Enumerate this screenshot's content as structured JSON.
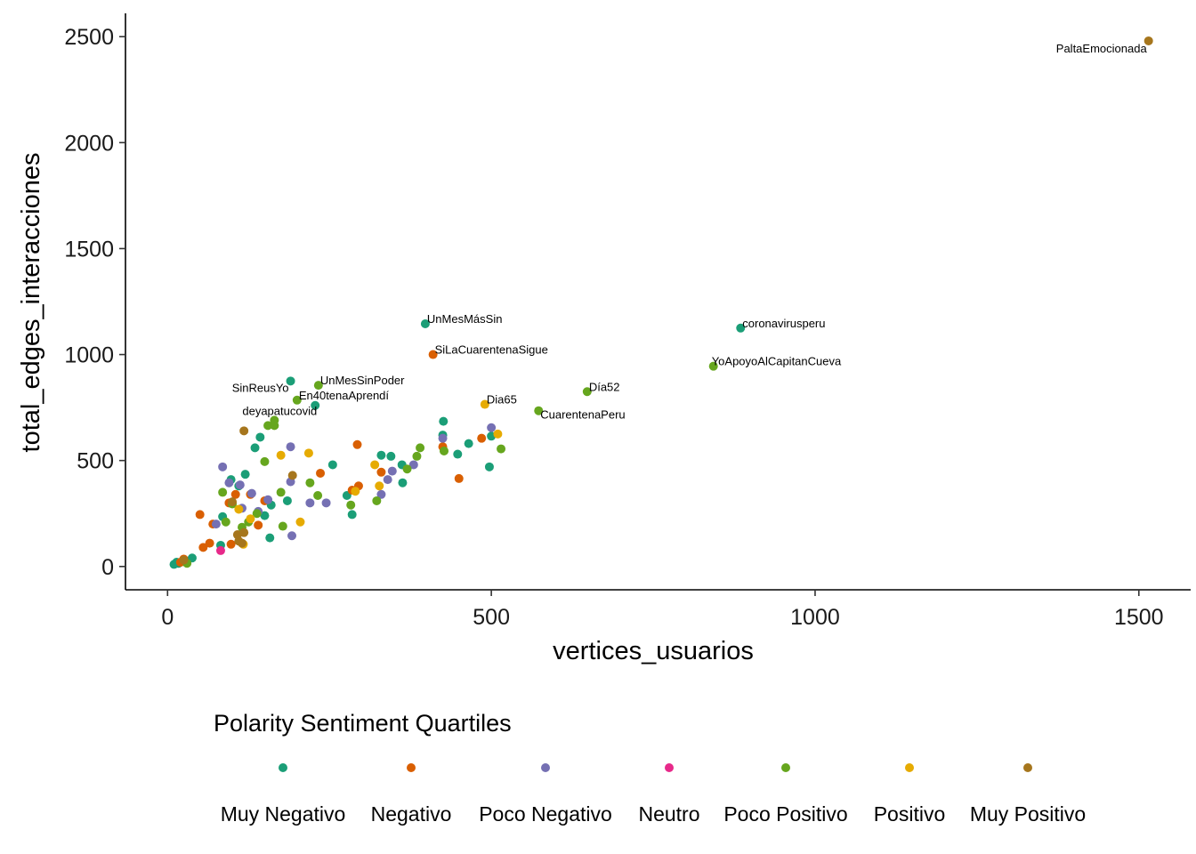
{
  "chart_data": {
    "type": "scatter",
    "title": "",
    "xlabel": "vertices_usuarios",
    "ylabel": "total_edges_interacciones",
    "xlim": [
      -65,
      1580
    ],
    "ylim": [
      -110,
      2610
    ],
    "x_ticks": [
      0,
      500,
      1000,
      1500
    ],
    "y_ticks": [
      0,
      500,
      1000,
      1500,
      2000,
      2500
    ],
    "grid": false,
    "legend": {
      "title": "Polarity Sentiment Quartiles",
      "position": "bottom",
      "entries": [
        {
          "name": "Muy Negativo",
          "color": "#1b9e77"
        },
        {
          "name": "Negativo",
          "color": "#d95f02"
        },
        {
          "name": "Poco Negativo",
          "color": "#7570b3"
        },
        {
          "name": "Neutro",
          "color": "#e7298a"
        },
        {
          "name": "Poco Positivo",
          "color": "#66a61e"
        },
        {
          "name": "Positivo",
          "color": "#e6ab02"
        },
        {
          "name": "Muy Positivo",
          "color": "#a6761d"
        }
      ]
    },
    "series": [
      {
        "name": "Muy Negativo",
        "points": [
          [
            885,
            1125
          ],
          [
            398,
            1145
          ],
          [
            190,
            875
          ],
          [
            228,
            760
          ],
          [
            143,
            610
          ],
          [
            135,
            560
          ],
          [
            426,
            685
          ],
          [
            465,
            580
          ],
          [
            448,
            530
          ],
          [
            497,
            470
          ],
          [
            500,
            615
          ],
          [
            425,
            620
          ],
          [
            330,
            525
          ],
          [
            345,
            520
          ],
          [
            362,
            480
          ],
          [
            363,
            395
          ],
          [
            277,
            335
          ],
          [
            285,
            245
          ],
          [
            255,
            480
          ],
          [
            98,
            410
          ],
          [
            120,
            435
          ],
          [
            110,
            380
          ],
          [
            160,
            290
          ],
          [
            158,
            135
          ],
          [
            185,
            310
          ],
          [
            150,
            240
          ],
          [
            85,
            235
          ],
          [
            82,
            100
          ],
          [
            30,
            25
          ],
          [
            38,
            40
          ],
          [
            14,
            20
          ],
          [
            10,
            10
          ],
          [
            17,
            15
          ]
        ]
      },
      {
        "name": "Negativo",
        "points": [
          [
            410,
            1000
          ],
          [
            293,
            575
          ],
          [
            485,
            605
          ],
          [
            450,
            415
          ],
          [
            425,
            565
          ],
          [
            236,
            440
          ],
          [
            295,
            380
          ],
          [
            285,
            360
          ],
          [
            330,
            445
          ],
          [
            140,
            195
          ],
          [
            150,
            310
          ],
          [
            128,
            340
          ],
          [
            95,
            300
          ],
          [
            105,
            340
          ],
          [
            50,
            245
          ],
          [
            70,
            200
          ],
          [
            55,
            90
          ],
          [
            65,
            110
          ],
          [
            98,
            105
          ],
          [
            20,
            20
          ],
          [
            25,
            35
          ]
        ]
      },
      {
        "name": "Poco Negativo",
        "points": [
          [
            190,
            565
          ],
          [
            500,
            655
          ],
          [
            425,
            605
          ],
          [
            380,
            480
          ],
          [
            347,
            450
          ],
          [
            340,
            410
          ],
          [
            330,
            340
          ],
          [
            245,
            300
          ],
          [
            220,
            300
          ],
          [
            190,
            400
          ],
          [
            192,
            145
          ],
          [
            112,
            385
          ],
          [
            130,
            345
          ],
          [
            115,
            275
          ],
          [
            140,
            260
          ],
          [
            155,
            315
          ],
          [
            85,
            470
          ],
          [
            95,
            395
          ],
          [
            75,
            200
          ]
        ]
      },
      {
        "name": "Neutro",
        "points": [
          [
            82,
            75
          ]
        ]
      },
      {
        "name": "Poco Positivo",
        "points": [
          [
            843,
            945
          ],
          [
            648,
            825
          ],
          [
            573,
            735
          ],
          [
            233,
            855
          ],
          [
            200,
            785
          ],
          [
            165,
            665
          ],
          [
            165,
            690
          ],
          [
            155,
            665
          ],
          [
            150,
            495
          ],
          [
            390,
            560
          ],
          [
            385,
            520
          ],
          [
            427,
            545
          ],
          [
            515,
            555
          ],
          [
            370,
            460
          ],
          [
            323,
            310
          ],
          [
            283,
            290
          ],
          [
            232,
            335
          ],
          [
            220,
            395
          ],
          [
            175,
            350
          ],
          [
            178,
            190
          ],
          [
            125,
            210
          ],
          [
            138,
            250
          ],
          [
            100,
            295
          ],
          [
            115,
            185
          ],
          [
            85,
            350
          ],
          [
            90,
            210
          ],
          [
            30,
            15
          ]
        ]
      },
      {
        "name": "Positivo",
        "points": [
          [
            490,
            765
          ],
          [
            510,
            625
          ],
          [
            175,
            525
          ],
          [
            218,
            535
          ],
          [
            320,
            480
          ],
          [
            327,
            380
          ],
          [
            205,
            210
          ],
          [
            290,
            355
          ],
          [
            128,
            225
          ],
          [
            110,
            270
          ],
          [
            117,
            105
          ]
        ]
      },
      {
        "name": "Muy Positivo",
        "points": [
          [
            1515,
            2480
          ],
          [
            118,
            640
          ],
          [
            193,
            430
          ],
          [
            118,
            160
          ],
          [
            100,
            305
          ],
          [
            110,
            120
          ],
          [
            115,
            110
          ],
          [
            108,
            150
          ],
          [
            25,
            30
          ]
        ]
      }
    ],
    "annotations": [
      {
        "text": "PaltaEmocionada",
        "x": 1515,
        "y": 2480,
        "anchor": "end",
        "dx": -2,
        "dy": 13
      },
      {
        "text": "coronavirusperu",
        "x": 885,
        "y": 1125,
        "anchor": "start",
        "dx": 2,
        "dy": -1
      },
      {
        "text": "UnMesMásSin",
        "x": 398,
        "y": 1145,
        "anchor": "start",
        "dx": 2,
        "dy": -1
      },
      {
        "text": "SiLaCuarentenaSigue",
        "x": 410,
        "y": 1000,
        "anchor": "start",
        "dx": 2,
        "dy": -1
      },
      {
        "text": "YoApoyoAlCapitanCueva",
        "x": 843,
        "y": 945,
        "anchor": "start",
        "dx": -2,
        "dy": -1
      },
      {
        "text": "SinReusYo",
        "x": 190,
        "y": 875,
        "anchor": "end",
        "dx": -2,
        "dy": 12
      },
      {
        "text": "UnMesSinPoder",
        "x": 233,
        "y": 855,
        "anchor": "start",
        "dx": 2,
        "dy": -1
      },
      {
        "text": "Día52",
        "x": 648,
        "y": 825,
        "anchor": "start",
        "dx": 2,
        "dy": -1
      },
      {
        "text": "En40tenaAprendí",
        "x": 200,
        "y": 785,
        "anchor": "start",
        "dx": 2,
        "dy": -1
      },
      {
        "text": "Dia65",
        "x": 490,
        "y": 765,
        "anchor": "start",
        "dx": 2,
        "dy": -1
      },
      {
        "text": "deyapatucovid",
        "x": 228,
        "y": 760,
        "anchor": "end",
        "dx": 2,
        "dy": 11
      },
      {
        "text": "CuarentenaPeru",
        "x": 573,
        "y": 735,
        "anchor": "start",
        "dx": 2,
        "dy": 9
      }
    ]
  }
}
